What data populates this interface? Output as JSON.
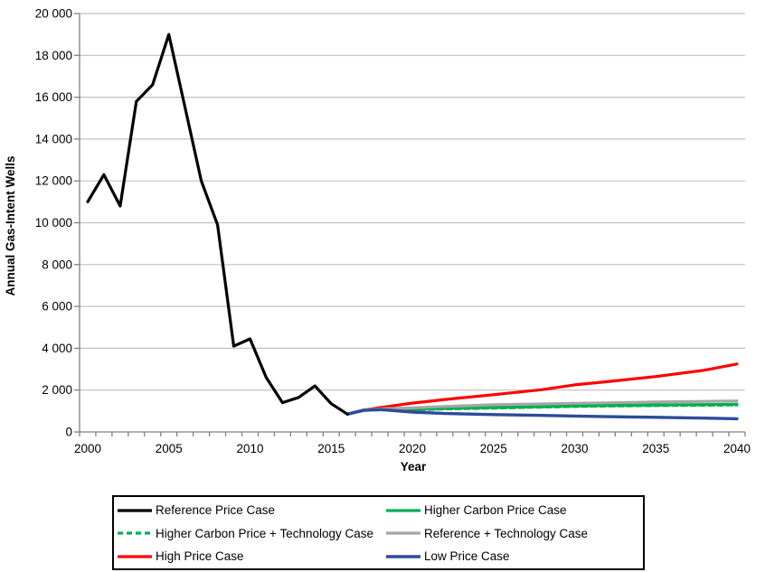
{
  "chart_data": {
    "type": "line",
    "title": "",
    "xlabel": "Year",
    "ylabel": "Annual Gas-Intent Wells",
    "xlim": [
      2000,
      2040
    ],
    "ylim": [
      0,
      20000
    ],
    "grid": "horizontal major gridlines every 2000",
    "x_ticks": [
      {
        "v": 2000,
        "label": "2000"
      },
      {
        "v": 2005,
        "label": "2005"
      },
      {
        "v": 2010,
        "label": "2010"
      },
      {
        "v": 2015,
        "label": "2015"
      },
      {
        "v": 2020,
        "label": "2020"
      },
      {
        "v": 2025,
        "label": "2025"
      },
      {
        "v": 2030,
        "label": "2030"
      },
      {
        "v": 2035,
        "label": "2035"
      },
      {
        "v": 2040,
        "label": "2040"
      }
    ],
    "y_ticks": [
      {
        "v": 0,
        "label": "0"
      },
      {
        "v": 2000,
        "label": "2 000"
      },
      {
        "v": 4000,
        "label": "4 000"
      },
      {
        "v": 6000,
        "label": "6 000"
      },
      {
        "v": 8000,
        "label": "8 000"
      },
      {
        "v": 10000,
        "label": "10 000"
      },
      {
        "v": 12000,
        "label": "12 000"
      },
      {
        "v": 14000,
        "label": "14 000"
      },
      {
        "v": 16000,
        "label": "16 000"
      },
      {
        "v": 18000,
        "label": "18 000"
      },
      {
        "v": 20000,
        "label": "20 000"
      }
    ],
    "series": [
      {
        "id": "high-price",
        "name": "High Price Case",
        "color": "#FF0000",
        "dash": null,
        "width": 3.2,
        "x": [
          2016,
          2017,
          2018,
          2020,
          2022,
          2025,
          2028,
          2030,
          2032,
          2035,
          2038,
          2040
        ],
        "values": [
          850,
          1050,
          1160,
          1380,
          1550,
          1780,
          2020,
          2250,
          2400,
          2650,
          2950,
          3250
        ]
      },
      {
        "id": "higher-carbon-tech",
        "name": "Higher Carbon Price + Technology Case",
        "color": "#00B050",
        "dash": [
          6,
          4
        ],
        "width": 3.2,
        "x": [
          2016,
          2017,
          2018,
          2020,
          2022,
          2025,
          2028,
          2030,
          2032,
          2035,
          2038,
          2040
        ],
        "values": [
          850,
          1040,
          1050,
          1060,
          1100,
          1140,
          1190,
          1220,
          1240,
          1260,
          1280,
          1290
        ]
      },
      {
        "id": "higher-carbon",
        "name": "Higher Carbon Price Case",
        "color": "#00B050",
        "dash": null,
        "width": 3.2,
        "x": [
          2016,
          2017,
          2018,
          2020,
          2022,
          2025,
          2028,
          2030,
          2032,
          2035,
          2038,
          2040
        ],
        "values": [
          850,
          1050,
          1070,
          1080,
          1130,
          1170,
          1220,
          1250,
          1270,
          1290,
          1310,
          1320
        ]
      },
      {
        "id": "reference-tech",
        "name": "Reference + Technology Case",
        "color": "#A6A6A6",
        "dash": null,
        "width": 3.2,
        "x": [
          2016,
          2017,
          2018,
          2020,
          2022,
          2025,
          2028,
          2030,
          2032,
          2035,
          2038,
          2040
        ],
        "values": [
          850,
          1060,
          1100,
          1150,
          1220,
          1300,
          1340,
          1370,
          1390,
          1430,
          1460,
          1480
        ]
      },
      {
        "id": "low-price",
        "name": "Low Price Case",
        "color": "#2D4B9A",
        "dash": null,
        "width": 3.4,
        "x": [
          2016,
          2017,
          2018,
          2020,
          2022,
          2025,
          2028,
          2030,
          2032,
          2035,
          2038,
          2040
        ],
        "values": [
          850,
          1030,
          1070,
          950,
          880,
          830,
          790,
          760,
          730,
          700,
          660,
          630
        ]
      },
      {
        "id": "reference-price",
        "name": "Reference Price Case",
        "color": "#000000",
        "dash": null,
        "width": 3.2,
        "x": [
          2000,
          2001,
          2002,
          2003,
          2004,
          2005,
          2006,
          2007,
          2008,
          2009,
          2010,
          2011,
          2012,
          2013,
          2014,
          2015,
          2016
        ],
        "values": [
          11000,
          12300,
          10800,
          15800,
          16600,
          19000,
          15500,
          12000,
          9900,
          4100,
          4450,
          2600,
          1400,
          1650,
          2200,
          1350,
          850
        ]
      }
    ],
    "legend": {
      "position": "bottom",
      "columns": 2,
      "order": [
        "reference-price",
        "higher-carbon",
        "higher-carbon-tech",
        "reference-tech",
        "high-price",
        "low-price"
      ]
    },
    "style": {
      "grid_color": "#C0C0C0",
      "axis_color": "#808080",
      "text_color": "#000000",
      "background": "#FFFFFF"
    }
  }
}
